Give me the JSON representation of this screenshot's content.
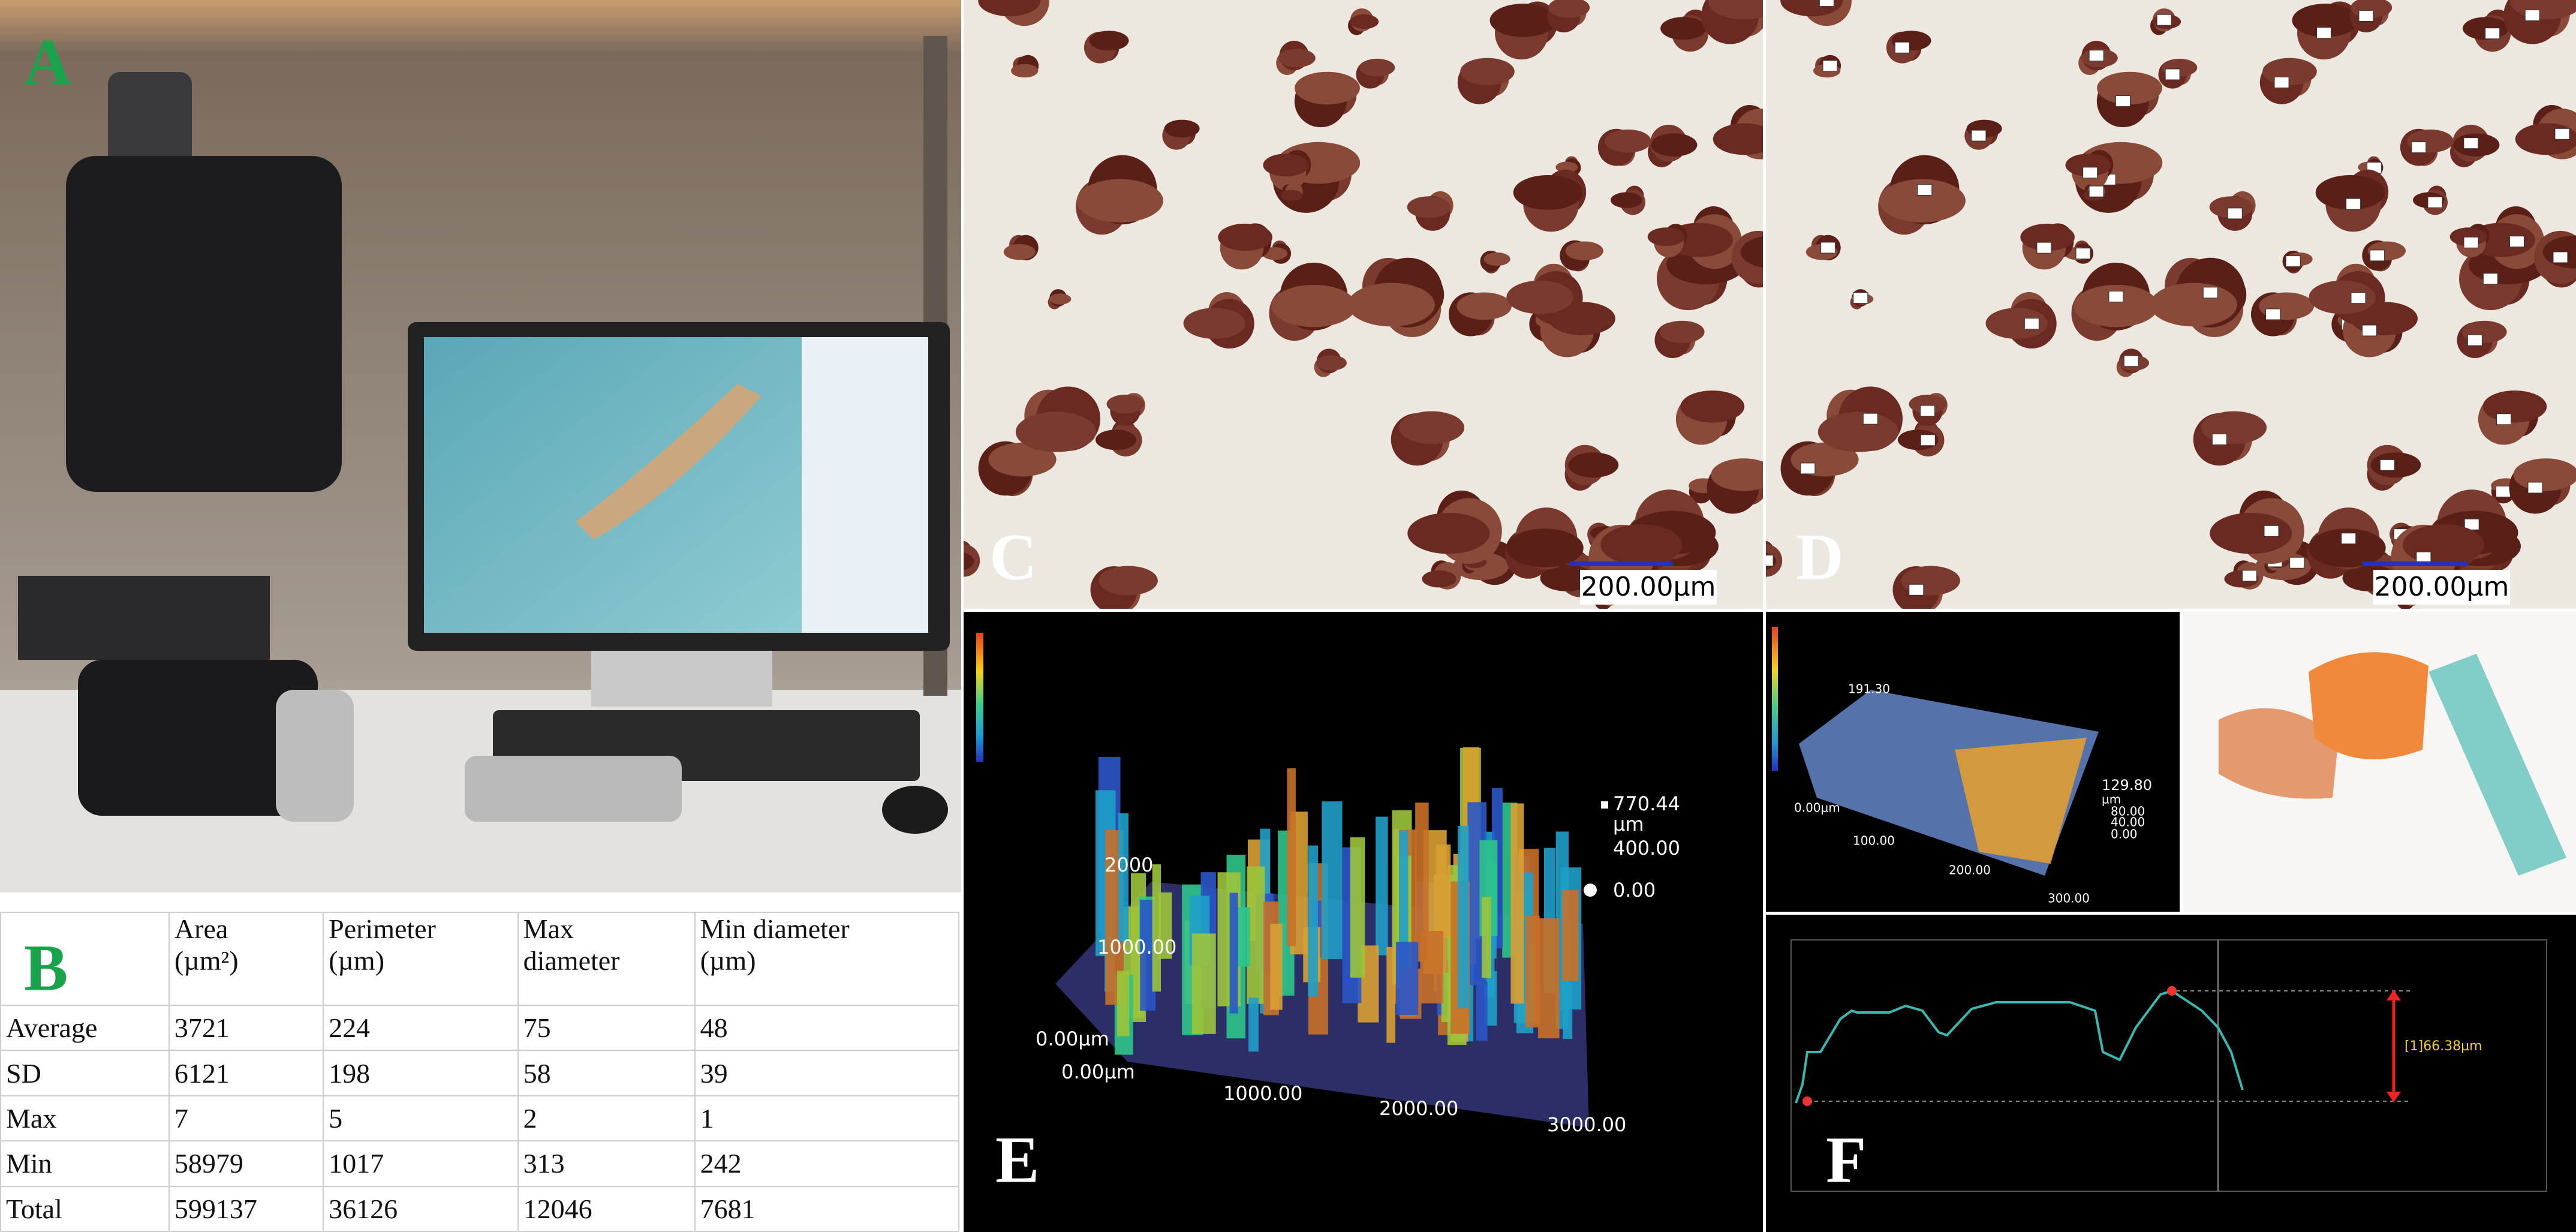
{
  "panels": {
    "a": "A",
    "b": "B",
    "c": "C",
    "d": "D",
    "e": "E",
    "f": "F"
  },
  "panel_c": {
    "scale_bar": "200.00µm"
  },
  "panel_d": {
    "scale_bar": "200.00µm"
  },
  "panel_e": {
    "z_max": "770.44",
    "z_unit": "µm",
    "z_mid": "400.00",
    "z_zero": "0.00",
    "y_labels": [
      "2000",
      "1000.00",
      "0.00µm"
    ],
    "x_labels": [
      "0.00µm",
      "1000.00",
      "2000.00",
      "3000.00"
    ]
  },
  "panel_f": {
    "top_label": "191.30",
    "height_labels": [
      "129.80",
      "µm",
      "80.00",
      "40.00",
      "0.00"
    ],
    "axis_labels": [
      "0.00µm",
      "100.00",
      "200.00",
      "300.00"
    ],
    "profile_label": "[1]66.38µm"
  },
  "table": {
    "header": [
      [
        "Area",
        "(µm²)"
      ],
      [
        "Perimeter",
        "(µm)"
      ],
      [
        "Max",
        "diameter"
      ],
      [
        "Min diameter",
        "(µm)"
      ]
    ],
    "rows": [
      [
        "Average",
        3721,
        224,
        75,
        48
      ],
      [
        "SD",
        6121,
        198,
        58,
        39
      ],
      [
        "Max",
        7,
        5,
        2,
        1
      ],
      [
        "Min",
        58979,
        1017,
        313,
        242
      ],
      [
        "Total",
        599137,
        36126,
        12046,
        7681
      ]
    ]
  }
}
